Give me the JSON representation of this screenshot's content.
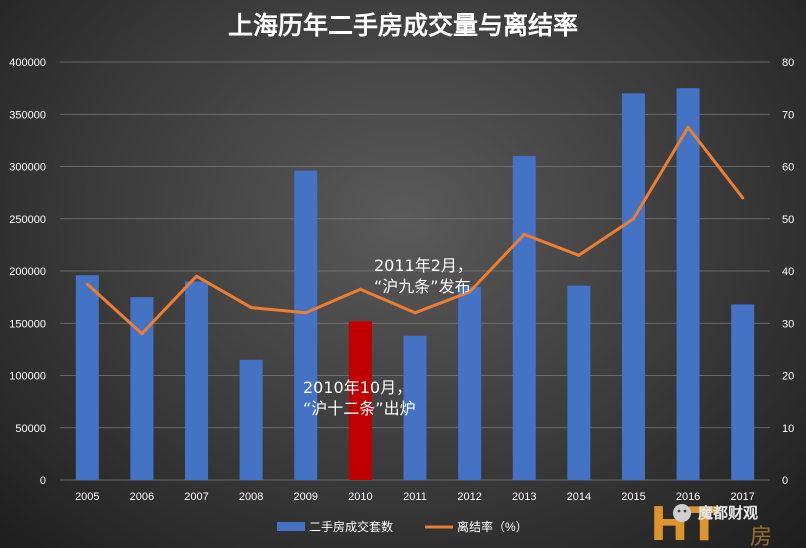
{
  "chart_data": {
    "type": "bar",
    "title": "上海历年二手房成交量与离结率",
    "categories": [
      "2005",
      "2006",
      "2007",
      "2008",
      "2009",
      "2010",
      "2011",
      "2012",
      "2013",
      "2014",
      "2015",
      "2016",
      "2017"
    ],
    "series": [
      {
        "name": "二手房成交套数",
        "type": "bar",
        "axis": "left",
        "color": "#4472c4",
        "values": [
          196000,
          175000,
          190000,
          115000,
          296000,
          152000,
          138000,
          185000,
          310000,
          186000,
          370000,
          375000,
          168000
        ]
      },
      {
        "name": "离结率（%）",
        "type": "line",
        "axis": "right",
        "color": "#ed7d31",
        "values": [
          37.5,
          28,
          39,
          33,
          32,
          36.5,
          32,
          36,
          47,
          43,
          50,
          67.5,
          54
        ]
      }
    ],
    "highlight": {
      "category": "2010",
      "color": "#c00000"
    },
    "y_left": {
      "min": 0,
      "max": 400000,
      "ticks": [
        0,
        50000,
        100000,
        150000,
        200000,
        250000,
        300000,
        350000,
        400000
      ]
    },
    "y_right": {
      "min": 0,
      "max": 80,
      "ticks": [
        0,
        10,
        20,
        30,
        40,
        50,
        60,
        70,
        80
      ]
    },
    "grid": true,
    "legend_position": "bottom",
    "annotations": [
      {
        "lines": [
          "2011年2月，",
          "“沪九条”发布"
        ]
      },
      {
        "lines": [
          "2010年10月，",
          "“沪十二条”出炉"
        ]
      }
    ]
  },
  "watermark": {
    "logo_text": "HT",
    "text": "魔都财观",
    "sub_text": "房"
  }
}
